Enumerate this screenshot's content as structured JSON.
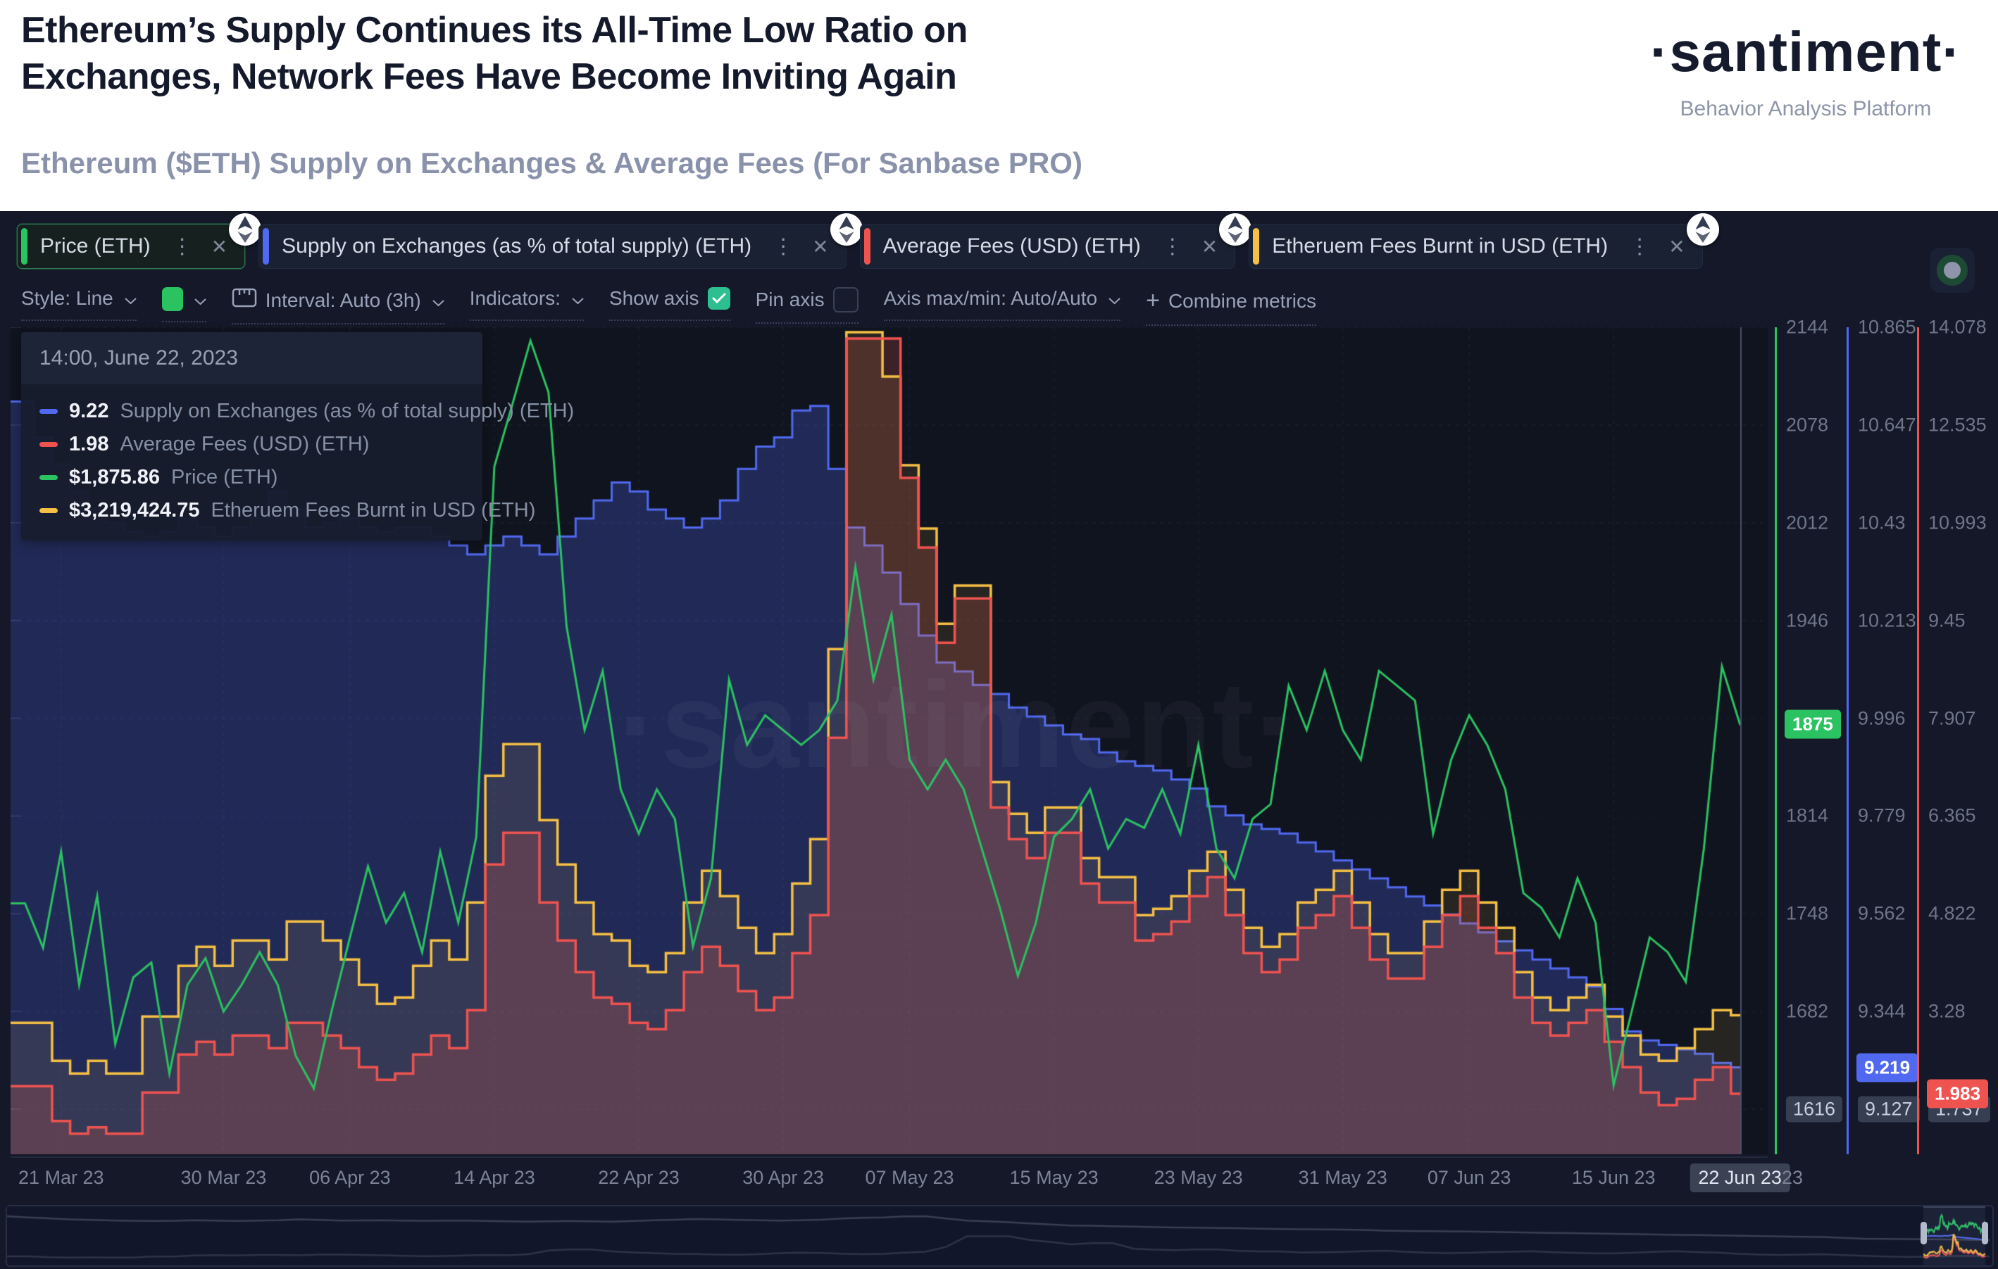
{
  "header": {
    "title_line1": "Ethereum’s Supply Continues its All-Time Low Ratio on",
    "title_line2": "Exchanges, Network Fees Have Become Inviting Again",
    "subtitle": "Ethereum ($ETH) Supply on Exchanges & Average Fees (For Sanbase PRO)",
    "brand": {
      "logo": "·santiment·",
      "tagline": "Behavior Analysis Platform"
    }
  },
  "metrics": [
    {
      "label": "Price (ETH)",
      "color": "#2bc261",
      "selected": true
    },
    {
      "label": "Supply on Exchanges (as % of total supply) (ETH)",
      "color": "#5069f0",
      "selected": false
    },
    {
      "label": "Average Fees (USD) (ETH)",
      "color": "#ef5350",
      "selected": false
    },
    {
      "label": "Etheruem Fees Burnt in USD (ETH)",
      "color": "#f5c044",
      "selected": false
    }
  ],
  "toolbar": {
    "style_label": "Style: Line",
    "swatch_color": "#2bc261",
    "interval_label": "Interval: Auto (3h)",
    "indicators_label": "Indicators:",
    "show_axis_label": "Show axis",
    "show_axis_checked": true,
    "pin_axis_label": "Pin axis",
    "pin_axis_checked": false,
    "axis_maxmin_label": "Axis max/min: Auto/Auto",
    "combine_plus": "+",
    "combine_label": "Combine metrics"
  },
  "tooltip": {
    "timestamp": "14:00, June 22, 2023",
    "rows": [
      {
        "color": "#5069f0",
        "value": "9.22",
        "label": "Supply on Exchanges (as % of total supply) (ETH)"
      },
      {
        "color": "#ef5350",
        "value": "1.98",
        "label": "Average Fees (USD) (ETH)"
      },
      {
        "color": "#2bc261",
        "value": "$1,875.86",
        "label": "Price (ETH)"
      },
      {
        "color": "#f5c044",
        "value": "$3,219,424.75",
        "label": "Etheruem Fees Burnt in USD (ETH)"
      }
    ]
  },
  "watermark": "·santiment·",
  "chart_data": {
    "type": "line",
    "x_start_date": "2023-03-19",
    "x_interval_days": 1,
    "x_ticks": {
      "labels": [
        "21 Mar 23",
        "30 Mar 23",
        "06 Apr 23",
        "14 Apr 23",
        "22 Apr 23",
        "30 Apr 23",
        "07 May 23",
        "15 May 23",
        "23 May 23",
        "31 May 23",
        "07 Jun 23",
        "15 Jun 23"
      ],
      "day_index": [
        2,
        11,
        18,
        26,
        34,
        42,
        49,
        57,
        65,
        73,
        80,
        88
      ]
    },
    "cursor": {
      "x_label": "22 Jun 23",
      "x_label_right": "23",
      "day_index": 95
    },
    "axes": {
      "price": {
        "color": "#2bc261",
        "ticks": [
          2144,
          2078,
          2012,
          1946,
          1880,
          1814,
          1748,
          1682,
          1616
        ],
        "current_value_label": "1875",
        "current_value": 1875.86,
        "min_badge": "1616"
      },
      "supply": {
        "color": "#5069f0",
        "ticks": [
          10.865,
          10.647,
          10.43,
          10.213,
          9.996,
          9.779,
          9.562,
          9.344,
          9.127
        ],
        "current_value_label": "9.219",
        "current_value": 9.219,
        "min_badge": "9.127"
      },
      "fees": {
        "color": "#ef5350",
        "ticks": [
          14.078,
          12.535,
          10.993,
          9.45,
          7.907,
          6.365,
          4.822,
          3.28,
          1.737
        ],
        "current_value_label": "1.983",
        "current_value": 1.983,
        "min_badge": "1.737"
      }
    },
    "series": [
      {
        "name": "Price (ETH)",
        "axis": "price",
        "style": "line",
        "color": "#2bc261",
        "unit": "USD",
        "values": [
          1755,
          1725,
          1790,
          1700,
          1760,
          1660,
          1705,
          1715,
          1640,
          1700,
          1718,
          1682,
          1700,
          1722,
          1700,
          1652,
          1630,
          1683,
          1732,
          1780,
          1742,
          1762,
          1722,
          1790,
          1742,
          1800,
          2050,
          2092,
          2135,
          2100,
          1942,
          1872,
          1912,
          1832,
          1802,
          1832,
          1812,
          1726,
          1772,
          1906,
          1862,
          1882,
          1872,
          1862,
          1872,
          1892,
          1982,
          1906,
          1950,
          1852,
          1832,
          1852,
          1832,
          1792,
          1752,
          1706,
          1742,
          1800,
          1812,
          1832,
          1792,
          1812,
          1806,
          1832,
          1802,
          1862,
          1792,
          1772,
          1812,
          1822,
          1902,
          1872,
          1912,
          1872,
          1852,
          1912,
          1902,
          1892,
          1802,
          1852,
          1882,
          1862,
          1832,
          1762,
          1752,
          1732,
          1772,
          1742,
          1632,
          1682,
          1732,
          1722,
          1702,
          1792,
          1915,
          1876
        ]
      },
      {
        "name": "Supply on Exchanges (as % of total supply) (ETH)",
        "axis": "supply",
        "style": "step",
        "color": "#5069f0",
        "fill": "rgba(80,105,240,0.27)",
        "unit": "%",
        "values": [
          10.7,
          10.62,
          10.56,
          10.5,
          10.46,
          10.43,
          10.41,
          10.4,
          10.41,
          10.44,
          10.42,
          10.4,
          10.42,
          10.44,
          10.5,
          10.46,
          10.42,
          10.43,
          10.44,
          10.42,
          10.41,
          10.42,
          10.42,
          10.4,
          10.38,
          10.36,
          10.38,
          10.4,
          10.38,
          10.36,
          10.4,
          10.44,
          10.48,
          10.52,
          10.5,
          10.46,
          10.44,
          10.42,
          10.44,
          10.48,
          10.55,
          10.6,
          10.62,
          10.68,
          10.69,
          10.55,
          10.42,
          10.38,
          10.32,
          10.25,
          10.18,
          10.12,
          10.1,
          10.07,
          10.05,
          10.02,
          10.0,
          9.98,
          9.96,
          9.95,
          9.92,
          9.9,
          9.89,
          9.88,
          9.86,
          9.84,
          9.8,
          9.78,
          9.76,
          9.75,
          9.74,
          9.72,
          9.7,
          9.68,
          9.66,
          9.64,
          9.62,
          9.6,
          9.58,
          9.56,
          9.54,
          9.52,
          9.5,
          9.48,
          9.46,
          9.44,
          9.42,
          9.4,
          9.35,
          9.3,
          9.28,
          9.27,
          9.26,
          9.25,
          9.23,
          9.22
        ]
      },
      {
        "name": "Average Fees (USD) (ETH)",
        "axis": "fees",
        "style": "step",
        "color": "#ef5350",
        "fill": "rgba(239,83,80,0.20)",
        "unit": "USD",
        "values": [
          2.1,
          2.1,
          1.55,
          1.35,
          1.45,
          1.35,
          1.35,
          2.0,
          2.0,
          2.6,
          2.8,
          2.6,
          2.9,
          2.9,
          2.7,
          3.1,
          3.1,
          2.9,
          2.7,
          2.4,
          2.2,
          2.3,
          2.6,
          2.9,
          2.7,
          3.3,
          5.6,
          6.1,
          6.1,
          5.0,
          4.4,
          3.9,
          3.5,
          3.4,
          3.1,
          3.0,
          3.3,
          3.9,
          4.3,
          4.0,
          3.6,
          3.3,
          3.5,
          4.2,
          4.8,
          7.6,
          13.9,
          13.9,
          13.9,
          11.7,
          10.6,
          9.1,
          9.8,
          9.8,
          6.5,
          6.0,
          5.7,
          6.1,
          6.1,
          5.3,
          5.0,
          5.0,
          4.4,
          4.5,
          4.7,
          5.1,
          5.4,
          4.8,
          4.2,
          3.9,
          4.1,
          4.6,
          4.8,
          5.1,
          4.6,
          4.1,
          3.8,
          3.8,
          4.3,
          4.8,
          5.1,
          4.6,
          4.2,
          3.5,
          3.1,
          2.9,
          3.1,
          3.3,
          2.8,
          2.4,
          2.0,
          1.8,
          1.9,
          2.2,
          2.4,
          1.98
        ]
      },
      {
        "name": "Etheruem Fees Burnt in USD (ETH)",
        "axis": "fees",
        "style": "step",
        "color": "#f5c044",
        "fill": "rgba(245,192,68,0.10)",
        "unit": "million USD",
        "values": [
          3.1,
          3.1,
          2.5,
          2.3,
          2.5,
          2.3,
          2.3,
          3.2,
          3.2,
          4.0,
          4.3,
          4.0,
          4.4,
          4.4,
          4.1,
          4.7,
          4.7,
          4.4,
          4.1,
          3.7,
          3.4,
          3.5,
          4.0,
          4.4,
          4.1,
          5.0,
          7.0,
          7.5,
          7.5,
          6.3,
          5.6,
          5.0,
          4.5,
          4.4,
          4.0,
          3.9,
          4.2,
          5.0,
          5.5,
          5.1,
          4.6,
          4.2,
          4.5,
          5.3,
          6.0,
          9.0,
          14.0,
          14.0,
          13.3,
          11.9,
          10.9,
          9.4,
          10.0,
          10.0,
          6.9,
          6.4,
          6.1,
          6.5,
          6.5,
          5.7,
          5.4,
          5.4,
          4.8,
          4.9,
          5.1,
          5.5,
          5.8,
          5.2,
          4.6,
          4.3,
          4.5,
          5.0,
          5.2,
          5.5,
          5.0,
          4.5,
          4.2,
          4.2,
          4.7,
          5.2,
          5.5,
          5.0,
          4.6,
          3.9,
          3.5,
          3.3,
          3.5,
          3.7,
          3.2,
          2.9,
          2.6,
          2.5,
          2.7,
          3.0,
          3.3,
          3.22
        ]
      }
    ]
  }
}
